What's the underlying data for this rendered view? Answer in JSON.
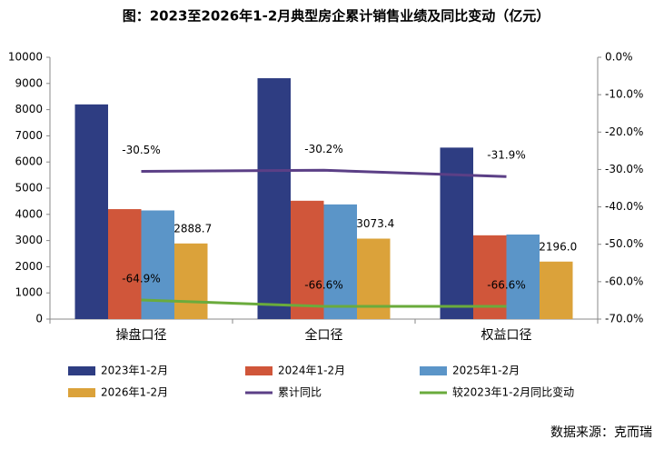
{
  "chart_data": {
    "type": "bar",
    "title": "图：2023至2026年1-2月典型房企累计销售业绩及同比变动（亿元）",
    "source": "数据来源：克而瑞",
    "categories": [
      "操盘口径",
      "全口径",
      "权益口径"
    ],
    "series": [
      {
        "name": "2023年1-2月",
        "color": "#2e3d82",
        "values": [
          8200,
          9200,
          6550
        ]
      },
      {
        "name": "2024年1-2月",
        "color": "#d0563a",
        "values": [
          4200,
          4520,
          3200
        ]
      },
      {
        "name": "2025年1-2月",
        "color": "#5b95c8",
        "values": [
          4150,
          4380,
          3230
        ]
      },
      {
        "name": "2026年1-2月",
        "color": "#dba23a",
        "values": [
          2888.7,
          3073.4,
          2196.0
        ],
        "value_labels": [
          "2888.7",
          "3073.4",
          "2196.0"
        ]
      },
      {
        "name": "累计同比",
        "type": "line",
        "axis": "y2",
        "color": "#5b3f86",
        "values": [
          -30.5,
          -30.2,
          -31.9
        ],
        "value_labels": [
          "-30.5%",
          "-30.2%",
          "-31.9%"
        ]
      },
      {
        "name": "较2023年1-2月同比变动",
        "type": "line",
        "axis": "y2",
        "color": "#6aab3c",
        "values": [
          -64.9,
          -66.6,
          -66.6
        ],
        "value_labels": [
          "-64.9%",
          "-66.6%",
          "-66.6%"
        ]
      }
    ],
    "ylim": [
      0,
      10000
    ],
    "yticks": [
      0,
      1000,
      2000,
      3000,
      4000,
      5000,
      6000,
      7000,
      8000,
      9000,
      10000
    ],
    "y2lim": [
      -70,
      0
    ],
    "y2ticks": [
      {
        "value": 0,
        "label": "0.0%"
      },
      {
        "value": -10,
        "label": "-10.0%"
      },
      {
        "value": -20,
        "label": "-20.0%"
      },
      {
        "value": -30,
        "label": "-30.0%"
      },
      {
        "value": -40,
        "label": "-40.0%"
      },
      {
        "value": -50,
        "label": "-50.0%"
      },
      {
        "value": -60,
        "label": "-60.0%"
      },
      {
        "value": -70,
        "label": "-70.0%"
      }
    ],
    "grid": false
  }
}
